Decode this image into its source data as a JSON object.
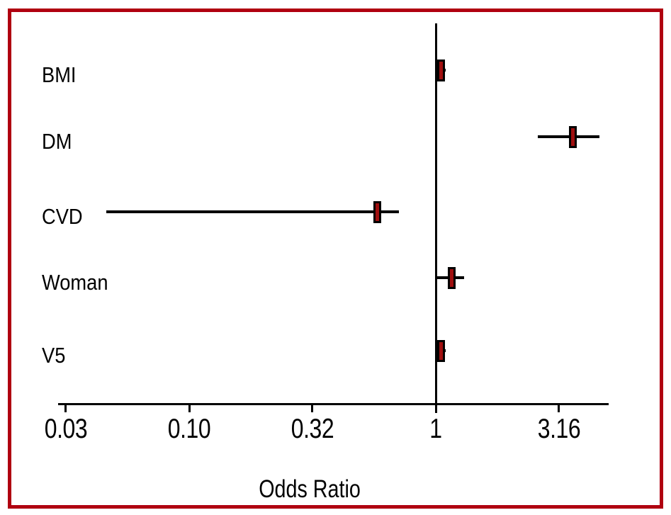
{
  "figure": {
    "background_color": "#FFFFFF",
    "border_color": "#B00010"
  },
  "chart_data": {
    "type": "scatter",
    "subtype": "forest-plot",
    "title": "",
    "xlabel": "Odds Ratio",
    "ylabel": "",
    "x_scale": "log10",
    "xlim": [
      0.03,
      5.1
    ],
    "reference_line_x": 1,
    "grid": false,
    "legend": false,
    "marker_color": "#A00F0F",
    "marker_border_color": "#000000",
    "line_color": "#000000",
    "x_ticks": [
      {
        "value": 0.0316,
        "label": "0.03"
      },
      {
        "value": 0.1,
        "label": "0.10"
      },
      {
        "value": 0.316,
        "label": "0.32"
      },
      {
        "value": 1,
        "label": "1"
      },
      {
        "value": 3.162,
        "label": "3.16"
      }
    ],
    "categories": [
      "BMI",
      "DM",
      "CVD",
      "Woman",
      "V5"
    ],
    "points": [
      {
        "label": "BMI",
        "odds_ratio": 1.05,
        "ci_low": 1.01,
        "ci_high": 1.1
      },
      {
        "label": "DM",
        "odds_ratio": 3.6,
        "ci_low": 2.6,
        "ci_high": 4.6
      },
      {
        "label": "CVD",
        "odds_ratio": 0.58,
        "ci_low": 0.046,
        "ci_high": 0.71
      },
      {
        "label": "Woman",
        "odds_ratio": 1.16,
        "ci_low": 1.0,
        "ci_high": 1.3
      },
      {
        "label": "V5",
        "odds_ratio": 1.05,
        "ci_low": 1.01,
        "ci_high": 1.1
      }
    ]
  }
}
